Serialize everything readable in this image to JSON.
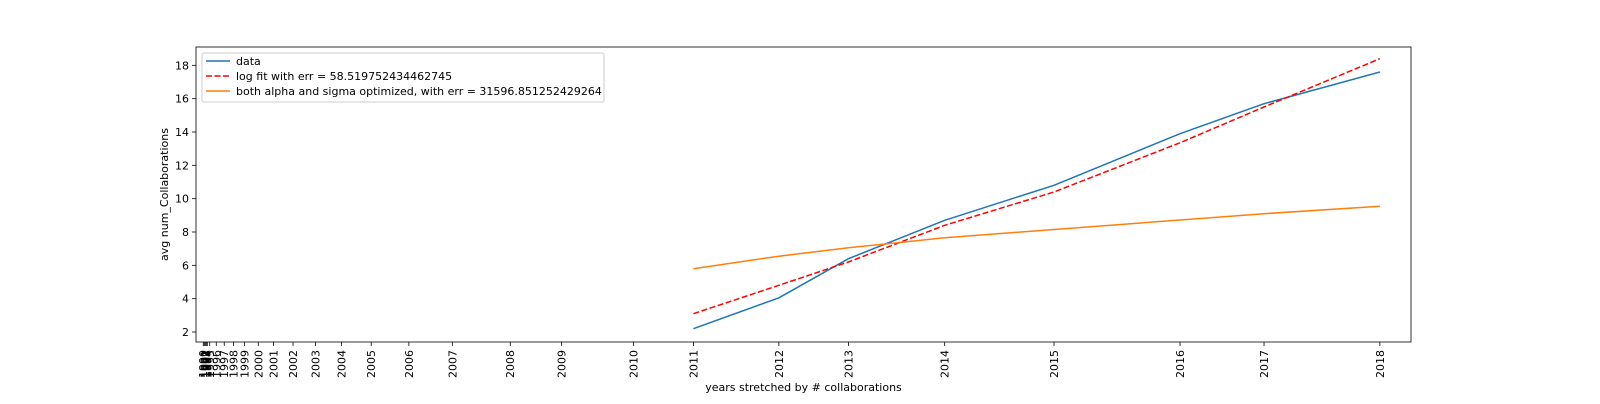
{
  "chart_data": {
    "type": "line",
    "title": "",
    "xlabel": "years stretched by # collaborations",
    "ylabel": "avg num_Collaborations",
    "xscale": "stretched by # collaborations",
    "x_ticks": [
      {
        "label": "1990",
        "pos": 0.0
      },
      {
        "label": "1991",
        "pos": 0.07
      },
      {
        "label": "1992",
        "pos": 0.14
      },
      {
        "label": "1993",
        "pos": 0.21
      },
      {
        "label": "1994",
        "pos": 0.28
      },
      {
        "label": "1995",
        "pos": 0.45
      },
      {
        "label": "1996",
        "pos": 0.9
      },
      {
        "label": "1997",
        "pos": 1.45
      },
      {
        "label": "1998",
        "pos": 2.1
      },
      {
        "label": "1999",
        "pos": 2.85
      },
      {
        "label": "2000",
        "pos": 3.8
      },
      {
        "label": "2001",
        "pos": 4.85
      },
      {
        "label": "2002",
        "pos": 6.2
      },
      {
        "label": "2003",
        "pos": 7.75
      },
      {
        "label": "2004",
        "pos": 9.55
      },
      {
        "label": "2005",
        "pos": 11.6
      },
      {
        "label": "2006",
        "pos": 14.2
      },
      {
        "label": "2007",
        "pos": 17.2
      },
      {
        "label": "2008",
        "pos": 21.2
      },
      {
        "label": "2009",
        "pos": 24.75
      },
      {
        "label": "2010",
        "pos": 29.7
      },
      {
        "label": "2011",
        "pos": 33.85
      },
      {
        "label": "2012",
        "pos": 39.75
      },
      {
        "label": "2013",
        "pos": 44.55
      },
      {
        "label": "2014",
        "pos": 51.2
      },
      {
        "label": "2015",
        "pos": 58.75
      },
      {
        "label": "2016",
        "pos": 67.45
      },
      {
        "label": "2017",
        "pos": 73.25
      },
      {
        "label": "2018",
        "pos": 81.25
      }
    ],
    "x_range": [
      -0.5,
      83.4
    ],
    "yticks": [
      2,
      4,
      6,
      8,
      10,
      12,
      14,
      16,
      18
    ],
    "ylim": [
      1.4,
      19.1
    ],
    "grid": false,
    "legend": "upper-left",
    "series": [
      {
        "name": "data",
        "color": "#1f77b4",
        "dash": "solid",
        "points": [
          [
            33.85,
            2.2
          ],
          [
            39.75,
            4.05
          ],
          [
            44.55,
            6.4
          ],
          [
            51.2,
            8.7
          ],
          [
            58.75,
            10.8
          ],
          [
            67.45,
            13.9
          ],
          [
            73.25,
            15.7
          ],
          [
            81.25,
            17.6
          ]
        ]
      },
      {
        "name": "log fit with err = 58.519752434462745",
        "color": "#ff0000",
        "dash": "dashed",
        "points": [
          [
            33.85,
            3.1
          ],
          [
            39.75,
            4.8
          ],
          [
            44.55,
            6.2
          ],
          [
            51.2,
            8.4
          ],
          [
            58.75,
            10.4
          ],
          [
            67.45,
            13.35
          ],
          [
            73.25,
            15.5
          ],
          [
            81.25,
            18.4
          ]
        ]
      },
      {
        "name": "both alpha and sigma optimized, with err = 31596.851252429264",
        "color": "#ff7f0e",
        "dash": "solid",
        "points": [
          [
            33.85,
            5.8
          ],
          [
            39.75,
            6.55
          ],
          [
            44.55,
            7.05
          ],
          [
            51.2,
            7.65
          ],
          [
            58.75,
            8.15
          ],
          [
            67.45,
            8.72
          ],
          [
            73.25,
            9.1
          ],
          [
            81.25,
            9.55
          ]
        ]
      }
    ]
  }
}
